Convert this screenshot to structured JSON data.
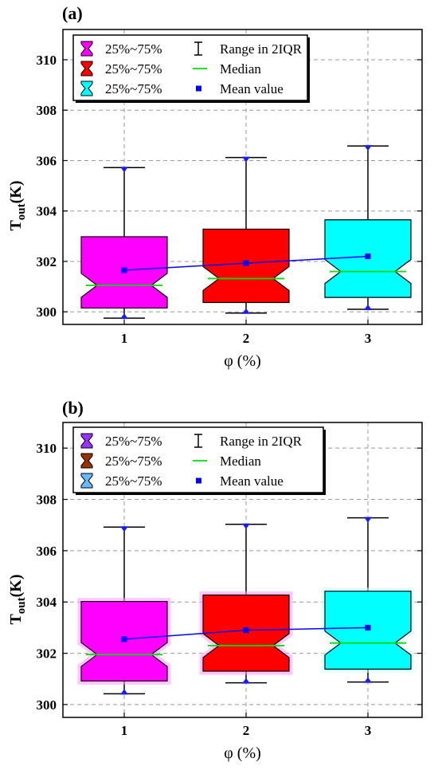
{
  "chart_data": [
    {
      "panel_label": "(a)",
      "type": "boxplot",
      "xlabel": "φ (%)",
      "ylabel_main": "T",
      "ylabel_sub": "out",
      "ylabel_unit": "(K)",
      "categories": [
        "1",
        "2",
        "3"
      ],
      "ylim": [
        299.5,
        311.2
      ],
      "yticks": [
        300,
        302,
        304,
        306,
        308,
        310
      ],
      "grid": true,
      "legend_position": "top-left",
      "legend": [
        {
          "swatch": "box",
          "color": "#ff00ff",
          "label": "25%~75%"
        },
        {
          "swatch": "errorbar",
          "label": "Range in 2IQR"
        },
        {
          "swatch": "box",
          "color": "#ff0000",
          "label": "25%~75%"
        },
        {
          "swatch": "line",
          "color": "#00dd00",
          "label": "Median"
        },
        {
          "swatch": "box",
          "color": "#00ffff",
          "label": "25%~75%"
        },
        {
          "swatch": "square",
          "color": "#0000ff",
          "label": "Mean value"
        }
      ],
      "boxes": [
        {
          "category": "1",
          "color": "#ff00ff",
          "whisker_low": 299.75,
          "q1": 300.15,
          "median": 301.05,
          "q3": 302.98,
          "whisker_high": 305.72,
          "mean": 301.65
        },
        {
          "category": "2",
          "color": "#ff0000",
          "whisker_low": 299.95,
          "q1": 300.37,
          "median": 301.32,
          "q3": 303.28,
          "whisker_high": 306.12,
          "mean": 301.93
        },
        {
          "category": "3",
          "color": "#00ffff",
          "whisker_low": 300.1,
          "q1": 300.57,
          "median": 301.6,
          "q3": 303.65,
          "whisker_high": 306.58,
          "mean": 302.2
        }
      ],
      "mean_line_color": "#0000ff",
      "median_color": "#00dd00"
    },
    {
      "panel_label": "(b)",
      "type": "boxplot",
      "xlabel": "φ (%)",
      "ylabel_main": "T",
      "ylabel_sub": "out",
      "ylabel_unit": "(K)",
      "categories": [
        "1",
        "2",
        "3"
      ],
      "ylim": [
        299.5,
        311.0
      ],
      "yticks": [
        300,
        302,
        304,
        306,
        308,
        310
      ],
      "grid": true,
      "legend_position": "top-left",
      "legend": [
        {
          "swatch": "box",
          "color": "#9933ff",
          "label": "25%~75%"
        },
        {
          "swatch": "errorbar",
          "label": "Range in 2IQR"
        },
        {
          "swatch": "box",
          "color": "#993300",
          "label": "25%~75%"
        },
        {
          "swatch": "line",
          "color": "#00dd00",
          "label": "Median"
        },
        {
          "swatch": "box",
          "color": "#66bbff",
          "label": "25%~75%"
        },
        {
          "swatch": "square",
          "color": "#0000ff",
          "label": "Mean value"
        }
      ],
      "boxes": [
        {
          "category": "1",
          "color": "#ff00ff",
          "glow": "#ff99ff",
          "whisker_low": 300.42,
          "q1": 300.92,
          "median": 301.95,
          "q3": 304.02,
          "whisker_high": 306.92,
          "mean": 302.55
        },
        {
          "category": "2",
          "color": "#ff0000",
          "glow": "#ff99ff",
          "whisker_low": 300.85,
          "q1": 301.3,
          "median": 302.3,
          "q3": 304.27,
          "whisker_high": 307.03,
          "mean": 302.9
        },
        {
          "category": "3",
          "color": "#00ffff",
          "glow": "#ccffff",
          "whisker_low": 300.88,
          "q1": 301.38,
          "median": 302.4,
          "q3": 304.42,
          "whisker_high": 307.28,
          "mean": 303.0
        }
      ],
      "mean_line_color": "#0000ff",
      "median_color": "#00dd00"
    }
  ]
}
